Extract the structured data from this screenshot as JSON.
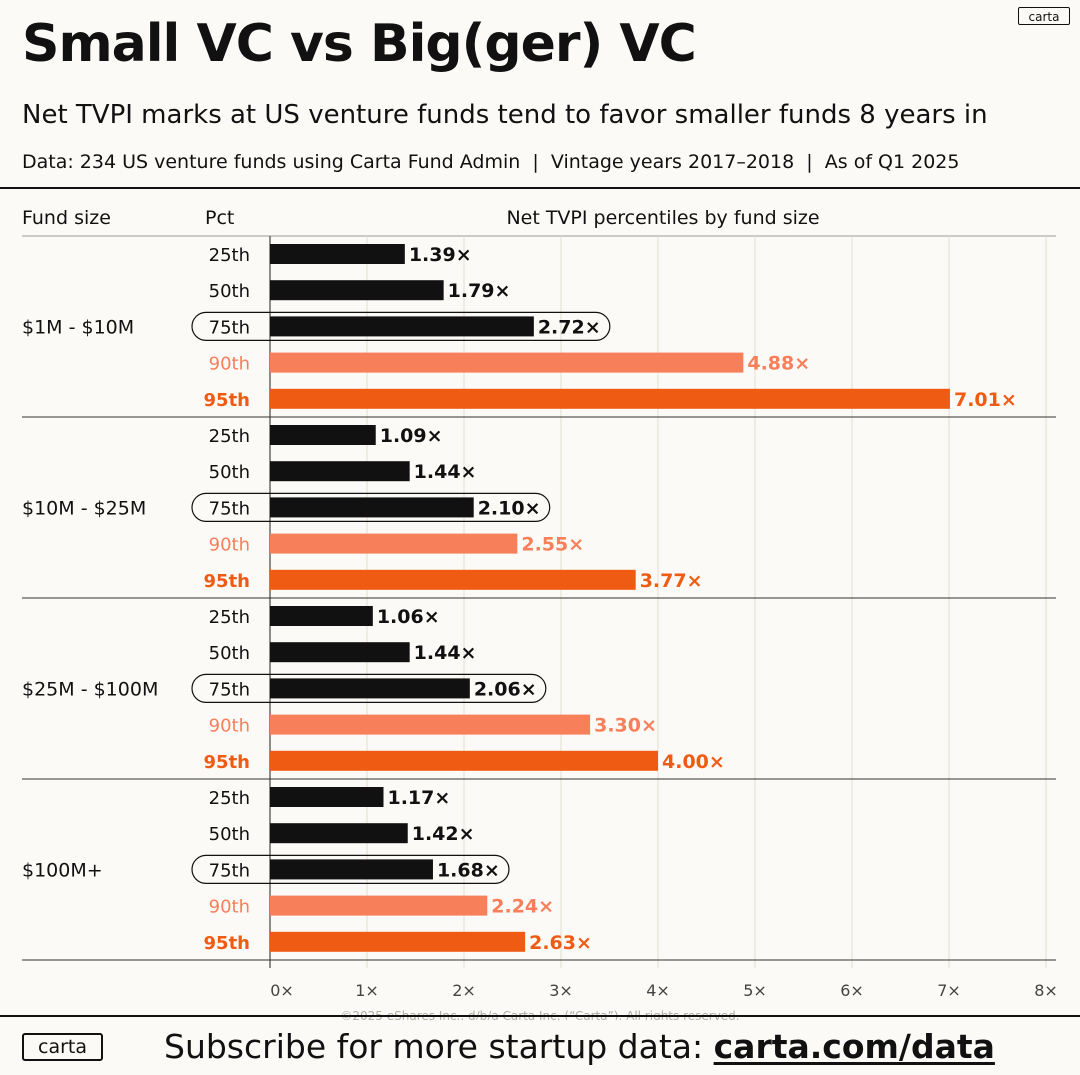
{
  "brand": "carta",
  "title": "Small VC vs Big(ger) VC",
  "subtitle": "Net TVPI marks at US venture funds tend to favor smaller funds 8 years in",
  "meta": "Data: 234 US venture funds using Carta Fund Admin  |  Vintage years 2017–2018  |  As of Q1 2025",
  "footer": {
    "text": "Subscribe for more startup data: ",
    "link": "carta.com/data"
  },
  "copyright": "©2025 eShares Inc., d/b/a Carta Inc. (“Carta”). All rights reserved.",
  "colors": {
    "dark": "#111111",
    "light_orange": "#f77f5a",
    "orange": "#f05b14",
    "background": "#fcfaf6"
  },
  "chart_data": {
    "type": "bar",
    "orientation": "horizontal",
    "title": "Net TVPI percentiles by fund size",
    "column_headers": [
      "Fund size",
      "Pct"
    ],
    "xlim": [
      0,
      8
    ],
    "x_ticks": [
      "0×",
      "1×",
      "2×",
      "3×",
      "4×",
      "5×",
      "6×",
      "7×",
      "8×"
    ],
    "grid": true,
    "percentiles": [
      "25th",
      "50th",
      "75th",
      "90th",
      "95th"
    ],
    "value_suffix": "×",
    "groups": [
      {
        "name": "$1M - $10M",
        "values": [
          1.39,
          1.79,
          2.72,
          4.88,
          7.01
        ]
      },
      {
        "name": "$10M - $25M",
        "values": [
          1.09,
          1.44,
          2.1,
          2.55,
          3.77
        ]
      },
      {
        "name": "$25M - $100M",
        "values": [
          1.06,
          1.44,
          2.06,
          3.3,
          4.0
        ]
      },
      {
        "name": "$100M+",
        "values": [
          1.17,
          1.42,
          1.68,
          2.24,
          2.63
        ]
      }
    ]
  }
}
